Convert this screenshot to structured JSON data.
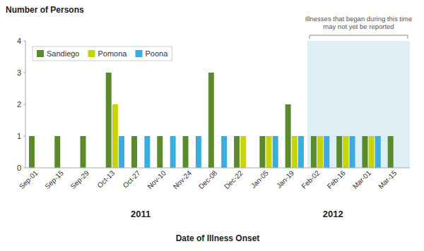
{
  "chart_data": {
    "type": "bar",
    "title": "Number of Persons",
    "xlabel": "Date of Illness Onset",
    "categories": [
      "Sep-01",
      "Sep-15",
      "Sep-29",
      "Oct-13",
      "Oct-27",
      "Nov-10",
      "Nov-24",
      "Dec-08",
      "Dec-22",
      "Jan-05",
      "Jan-19",
      "Feb-02",
      "Feb-16",
      "Mar-01",
      "Mar-15"
    ],
    "series": [
      {
        "name": "Sandiego",
        "color": "#5b8a2d",
        "values": [
          1,
          1,
          1,
          3,
          1,
          1,
          1,
          3,
          1,
          1,
          2,
          1,
          1,
          1,
          1
        ]
      },
      {
        "name": "Pomona",
        "color": "#c8d400",
        "values": [
          null,
          null,
          null,
          2,
          null,
          null,
          null,
          null,
          1,
          1,
          1,
          1,
          1,
          1,
          null
        ]
      },
      {
        "name": "Poona",
        "color": "#3aace0",
        "values": [
          null,
          null,
          null,
          1,
          1,
          1,
          1,
          1,
          null,
          1,
          1,
          1,
          1,
          1,
          null
        ]
      }
    ],
    "ylim": [
      0,
      4
    ],
    "yticks": [
      0,
      1,
      2,
      3,
      4
    ],
    "grid": false,
    "legend": "upper left",
    "annotations": [
      {
        "text": "Illnesses that began during this time\nmay not yet be reported",
        "start": "Feb-02",
        "end": "Mar-15",
        "color": "#ddeef5"
      }
    ],
    "x_groups": [
      {
        "label": "2011",
        "start": "Sep-01",
        "end": "Dec-22"
      },
      {
        "label": "2012",
        "start": "Jan-05",
        "end": "Mar-15"
      }
    ]
  }
}
